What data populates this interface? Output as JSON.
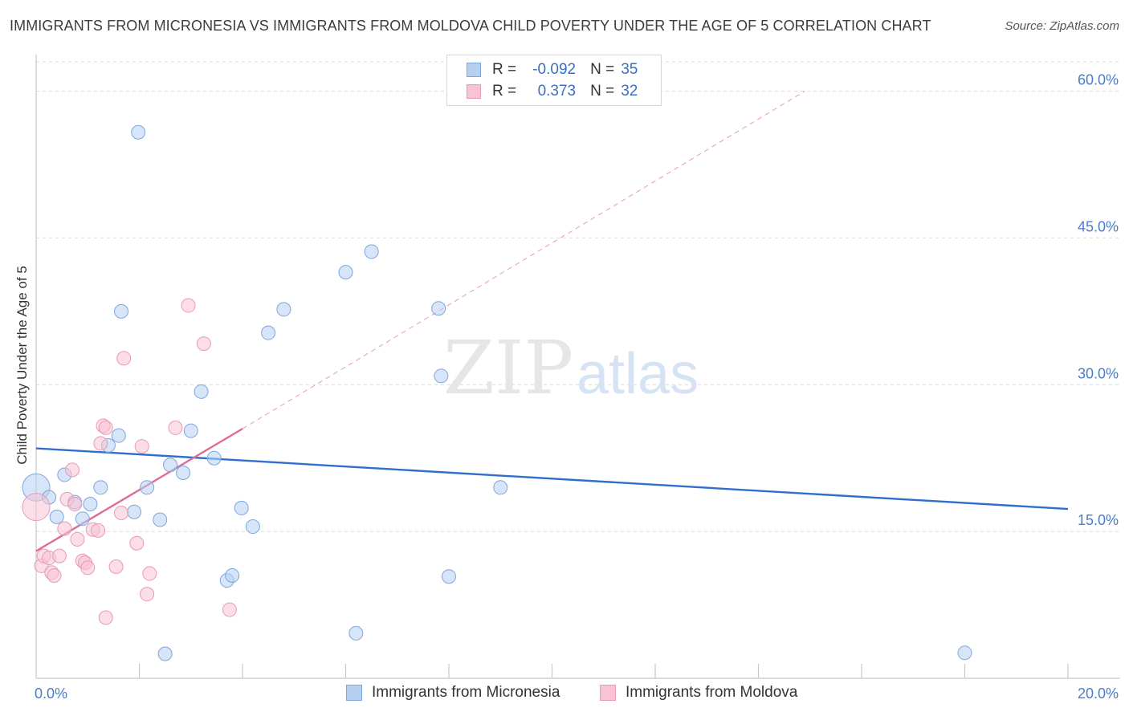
{
  "header": {
    "title": "IMMIGRANTS FROM MICRONESIA VS IMMIGRANTS FROM MOLDOVA CHILD POVERTY UNDER THE AGE OF 5 CORRELATION CHART",
    "source": "Source: ZipAtlas.com"
  },
  "watermark": {
    "zip": "ZIP",
    "atlas": "atlas"
  },
  "legend": {
    "rows": [
      {
        "r_label": "R =",
        "r_value": "-0.092",
        "n_label": "N =",
        "n_value": "35"
      },
      {
        "r_label": "R =",
        "r_value": "0.373",
        "n_label": "N =",
        "n_value": "32"
      }
    ]
  },
  "colors": {
    "micronesia_fill": "#b6d0f2",
    "micronesia_stroke": "#7fa6dc",
    "micronesia_line": "#2f6fcc",
    "moldova_fill": "#f8c3d4",
    "moldova_stroke": "#e89ab4",
    "moldova_line": "#e06b97",
    "grid": "#dcdcdc",
    "tick_text": "#4a7cc9"
  },
  "chart_data": {
    "type": "scatter",
    "title": "IMMIGRANTS FROM MICRONESIA VS IMMIGRANTS FROM MOLDOVA CHILD POVERTY UNDER THE AGE OF 5 CORRELATION CHART",
    "xlabel": "",
    "ylabel": "Child Poverty Under the Age of 5",
    "xlim": [
      0,
      20
    ],
    "ylim": [
      0,
      63
    ],
    "x_ticks": [
      {
        "value": 0,
        "label": "0.0%"
      },
      {
        "value": 20,
        "label": "20.0%"
      }
    ],
    "x_minor_ticks": [
      2,
      4,
      6,
      8,
      10,
      12,
      14,
      16,
      18,
      20
    ],
    "y_ticks": [
      {
        "value": 15,
        "label": "15.0%"
      },
      {
        "value": 30,
        "label": "30.0%"
      },
      {
        "value": 45,
        "label": "45.0%"
      },
      {
        "value": 60,
        "label": "60.0%"
      }
    ],
    "grid": "horizontal dashed",
    "legend_position": "bottom",
    "series": [
      {
        "name": "Immigrants from Micronesia",
        "color": "#b6d0f2",
        "points": [
          [
            0.0,
            19.5
          ],
          [
            0.25,
            18.5
          ],
          [
            0.4,
            16.5
          ],
          [
            0.55,
            20.8
          ],
          [
            0.75,
            18.0
          ],
          [
            0.9,
            16.3
          ],
          [
            1.05,
            17.8
          ],
          [
            1.25,
            19.5
          ],
          [
            1.4,
            23.8
          ],
          [
            1.6,
            24.8
          ],
          [
            1.65,
            37.5
          ],
          [
            1.9,
            17.0
          ],
          [
            1.98,
            55.8
          ],
          [
            2.15,
            19.5
          ],
          [
            2.4,
            16.2
          ],
          [
            2.5,
            2.5
          ],
          [
            2.6,
            21.8
          ],
          [
            2.85,
            21.0
          ],
          [
            3.0,
            25.3
          ],
          [
            3.2,
            29.3
          ],
          [
            3.45,
            22.5
          ],
          [
            3.7,
            10.0
          ],
          [
            3.8,
            10.5
          ],
          [
            3.98,
            17.4
          ],
          [
            4.2,
            15.5
          ],
          [
            4.5,
            35.3
          ],
          [
            4.8,
            37.7
          ],
          [
            6.0,
            41.5
          ],
          [
            6.2,
            4.6
          ],
          [
            6.5,
            43.6
          ],
          [
            7.8,
            37.8
          ],
          [
            7.85,
            30.9
          ],
          [
            8.0,
            10.4
          ],
          [
            9.0,
            19.5
          ],
          [
            18.0,
            2.6
          ]
        ]
      },
      {
        "name": "Immigrants from Moldova",
        "color": "#f8c3d4",
        "points": [
          [
            0.0,
            17.5
          ],
          [
            0.1,
            11.5
          ],
          [
            0.15,
            12.5
          ],
          [
            0.25,
            12.3
          ],
          [
            0.3,
            10.8
          ],
          [
            0.35,
            10.5
          ],
          [
            0.45,
            12.5
          ],
          [
            0.55,
            15.3
          ],
          [
            0.6,
            18.3
          ],
          [
            0.7,
            21.3
          ],
          [
            0.75,
            17.8
          ],
          [
            0.8,
            14.2
          ],
          [
            0.9,
            12.0
          ],
          [
            0.95,
            11.8
          ],
          [
            1.0,
            11.3
          ],
          [
            1.1,
            15.2
          ],
          [
            1.2,
            15.1
          ],
          [
            1.25,
            24.0
          ],
          [
            1.3,
            25.8
          ],
          [
            1.35,
            25.6
          ],
          [
            1.35,
            6.2
          ],
          [
            1.55,
            11.4
          ],
          [
            1.65,
            16.9
          ],
          [
            1.7,
            32.7
          ],
          [
            1.95,
            13.8
          ],
          [
            2.05,
            23.7
          ],
          [
            2.15,
            8.6
          ],
          [
            2.2,
            10.7
          ],
          [
            2.7,
            25.6
          ],
          [
            2.95,
            38.1
          ],
          [
            3.25,
            34.2
          ],
          [
            3.75,
            7.0
          ]
        ]
      }
    ],
    "trend_lines": [
      {
        "series": "Immigrants from Micronesia",
        "x": [
          0,
          20
        ],
        "y": [
          23.5,
          17.3
        ],
        "style": "solid"
      },
      {
        "series": "Immigrants from Moldova",
        "x": [
          0,
          4.0
        ],
        "y": [
          13.0,
          25.5
        ],
        "style": "solid"
      },
      {
        "series": "Immigrants from Moldova",
        "x": [
          4.0,
          14.9
        ],
        "y": [
          25.5,
          60.0
        ],
        "style": "dashed"
      }
    ]
  }
}
